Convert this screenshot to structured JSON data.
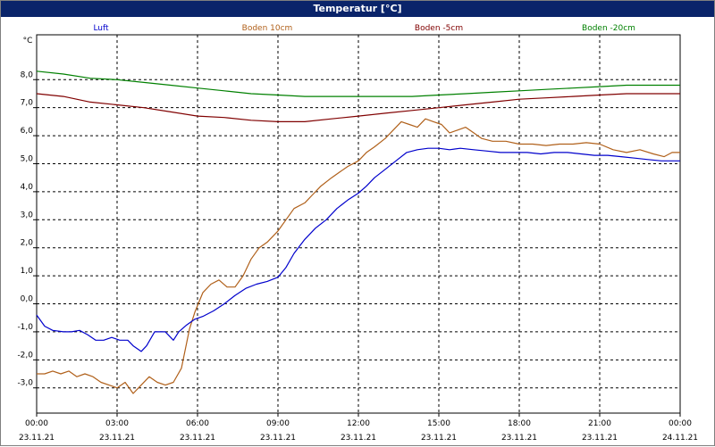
{
  "window": {
    "title": "Temperatur [°C]"
  },
  "chart_data": {
    "type": "line",
    "title": "Temperatur [°C]",
    "ylabel": "°C",
    "xlabel": "",
    "ylim": [
      -3.9,
      9.6
    ],
    "yticks": [
      "-3,0",
      "-2,0",
      "-1,0",
      "0,0",
      "1,0",
      "2,0",
      "3,0",
      "4,0",
      "5,0",
      "6,0",
      "7,0",
      "8,0"
    ],
    "ytick_values": [
      -3,
      -2,
      -1,
      0,
      1,
      2,
      3,
      4,
      5,
      6,
      7,
      8
    ],
    "xlim": [
      0,
      24
    ],
    "xticks": [
      {
        "time": "00:00",
        "date": "23.11.21"
      },
      {
        "time": "03:00",
        "date": "23.11.21"
      },
      {
        "time": "06:00",
        "date": "23.11.21"
      },
      {
        "time": "09:00",
        "date": "23.11.21"
      },
      {
        "time": "12:00",
        "date": "23.11.21"
      },
      {
        "time": "15:00",
        "date": "23.11.21"
      },
      {
        "time": "18:00",
        "date": "23.11.21"
      },
      {
        "time": "21:00",
        "date": "23.11.21"
      },
      {
        "time": "00:00",
        "date": "24.11.21"
      }
    ],
    "grid": true,
    "legend_position": "top",
    "series": [
      {
        "name": "Luft",
        "color": "#0000cc",
        "x": [
          0,
          0.3,
          0.6,
          1,
          1.3,
          1.6,
          1.9,
          2.2,
          2.5,
          2.8,
          3.1,
          3.4,
          3.6,
          3.9,
          4.1,
          4.4,
          4.6,
          4.8,
          5.1,
          5.3,
          5.6,
          5.9,
          6.2,
          6.6,
          7,
          7.4,
          7.8,
          8.2,
          8.6,
          9,
          9.3,
          9.6,
          10,
          10.4,
          10.8,
          11.2,
          11.6,
          12,
          12.3,
          12.6,
          13,
          13.4,
          13.8,
          14.2,
          14.6,
          15,
          15.4,
          15.8,
          16.3,
          16.8,
          17.3,
          17.8,
          18.3,
          18.8,
          19.3,
          19.8,
          20.3,
          20.8,
          21.3,
          21.8,
          22.3,
          22.8,
          23.3,
          23.7,
          24
        ],
        "y": [
          -0.4,
          -0.8,
          -0.95,
          -1.0,
          -1.0,
          -0.95,
          -1.1,
          -1.3,
          -1.3,
          -1.2,
          -1.3,
          -1.3,
          -1.5,
          -1.7,
          -1.5,
          -1.0,
          -1.0,
          -1.0,
          -1.3,
          -1.0,
          -0.75,
          -0.55,
          -0.45,
          -0.25,
          0.0,
          0.3,
          0.55,
          0.7,
          0.8,
          0.95,
          1.3,
          1.8,
          2.3,
          2.7,
          3.0,
          3.4,
          3.7,
          3.95,
          4.2,
          4.5,
          4.8,
          5.1,
          5.4,
          5.5,
          5.55,
          5.55,
          5.5,
          5.55,
          5.5,
          5.45,
          5.4,
          5.4,
          5.4,
          5.35,
          5.4,
          5.4,
          5.35,
          5.3,
          5.3,
          5.25,
          5.2,
          5.15,
          5.1,
          5.1,
          5.1
        ]
      },
      {
        "name": "Boden 10cm",
        "color": "#b0601a",
        "x": [
          0,
          0.3,
          0.6,
          0.9,
          1.2,
          1.5,
          1.8,
          2.1,
          2.4,
          2.7,
          3.0,
          3.3,
          3.6,
          3.9,
          4.2,
          4.5,
          4.8,
          5.1,
          5.4,
          5.7,
          5.9,
          6.2,
          6.5,
          6.8,
          7.1,
          7.4,
          7.7,
          8,
          8.3,
          8.6,
          9,
          9.3,
          9.6,
          10,
          10.3,
          10.6,
          11,
          11.3,
          11.6,
          12,
          12.3,
          12.6,
          13,
          13.3,
          13.6,
          13.9,
          14.2,
          14.5,
          14.8,
          15.1,
          15.4,
          15.7,
          16,
          16.3,
          16.6,
          17,
          17.5,
          18,
          18.5,
          19,
          19.5,
          20,
          20.5,
          21,
          21.5,
          22,
          22.5,
          23,
          23.4,
          23.7,
          24
        ],
        "y": [
          -2.5,
          -2.5,
          -2.4,
          -2.5,
          -2.4,
          -2.6,
          -2.5,
          -2.6,
          -2.8,
          -2.9,
          -3.0,
          -2.8,
          -3.2,
          -2.9,
          -2.6,
          -2.8,
          -2.9,
          -2.8,
          -2.3,
          -0.9,
          -0.3,
          0.4,
          0.7,
          0.85,
          0.6,
          0.6,
          1.0,
          1.6,
          2.0,
          2.2,
          2.6,
          3.0,
          3.4,
          3.6,
          3.9,
          4.2,
          4.5,
          4.7,
          4.9,
          5.1,
          5.4,
          5.6,
          5.9,
          6.2,
          6.5,
          6.4,
          6.3,
          6.6,
          6.5,
          6.4,
          6.1,
          6.2,
          6.3,
          6.1,
          5.9,
          5.8,
          5.8,
          5.7,
          5.7,
          5.65,
          5.7,
          5.7,
          5.75,
          5.7,
          5.5,
          5.4,
          5.5,
          5.35,
          5.25,
          5.4,
          5.4
        ]
      },
      {
        "name": "Boden -5cm",
        "color": "#800000",
        "x": [
          0,
          1,
          2,
          3,
          4,
          5,
          6,
          7,
          8,
          9,
          10,
          11,
          12,
          13,
          14,
          15,
          16,
          17,
          18,
          19,
          20,
          21,
          22,
          23,
          24
        ],
        "y": [
          7.5,
          7.4,
          7.2,
          7.1,
          7.0,
          6.85,
          6.7,
          6.65,
          6.55,
          6.5,
          6.5,
          6.6,
          6.7,
          6.8,
          6.9,
          7.0,
          7.1,
          7.2,
          7.3,
          7.35,
          7.4,
          7.45,
          7.5,
          7.5,
          7.5
        ]
      },
      {
        "name": "Boden -20cm",
        "color": "#008000",
        "x": [
          0,
          1,
          2,
          3,
          4,
          5,
          6,
          7,
          8,
          9,
          10,
          11,
          12,
          13,
          14,
          15,
          16,
          17,
          18,
          19,
          20,
          21,
          22,
          23,
          24
        ],
        "y": [
          8.3,
          8.2,
          8.05,
          8.0,
          7.9,
          7.8,
          7.7,
          7.6,
          7.5,
          7.45,
          7.4,
          7.4,
          7.4,
          7.4,
          7.4,
          7.45,
          7.5,
          7.55,
          7.6,
          7.65,
          7.7,
          7.75,
          7.8,
          7.8,
          7.8
        ]
      }
    ]
  }
}
